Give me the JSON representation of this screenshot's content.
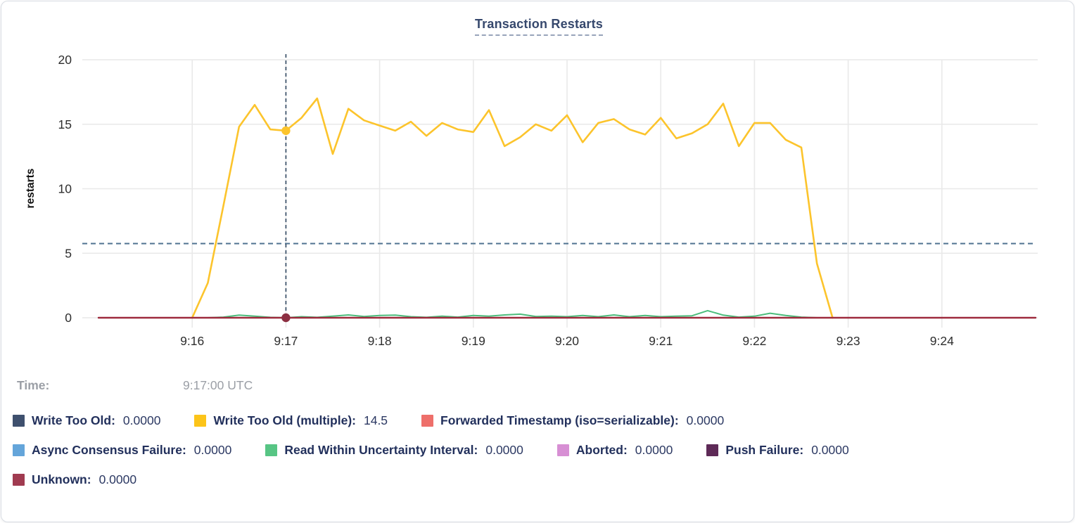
{
  "time_row": {
    "label": "Time:",
    "value": "9:17:00 UTC"
  },
  "legend": {
    "rows": [
      [
        {
          "name": "write-too-old",
          "label": "Write Too Old:",
          "value": "0.0000",
          "color": "#3f506e"
        },
        {
          "name": "write-too-old-multiple",
          "label": "Write Too Old (multiple):",
          "value": "14.5",
          "color": "#fcc419"
        },
        {
          "name": "forwarded-timestamp",
          "label": "Forwarded Timestamp (iso=serializable):",
          "value": "0.0000",
          "color": "#ee6f6a"
        }
      ],
      [
        {
          "name": "async-consensus-failure",
          "label": "Async Consensus Failure:",
          "value": "0.0000",
          "color": "#64a5da"
        },
        {
          "name": "read-within-uncertainty-interval",
          "label": "Read Within Uncertainty Interval:",
          "value": "0.0000",
          "color": "#57c584"
        },
        {
          "name": "aborted",
          "label": "Aborted:",
          "value": "0.0000",
          "color": "#d78fd4"
        },
        {
          "name": "push-failure",
          "label": "Push Failure:",
          "value": "0.0000",
          "color": "#5e2a57"
        }
      ],
      [
        {
          "name": "unknown",
          "label": "Unknown:",
          "value": "0.0000",
          "color": "#a03b50"
        }
      ]
    ]
  },
  "chart_data": {
    "type": "line",
    "title": "Transaction Restarts",
    "ylabel": "restarts",
    "ylim": [
      0,
      20
    ],
    "grid": true,
    "legend_position": "bottom",
    "y_ticks": [
      {
        "label": "0",
        "value": 0
      },
      {
        "label": "5",
        "value": 5
      },
      {
        "label": "10",
        "value": 10
      },
      {
        "label": "15",
        "value": 15
      },
      {
        "label": "20",
        "value": 20
      }
    ],
    "x_unit": "seconds since 9:15:00 UTC",
    "x_range_seconds": [
      0,
      600
    ],
    "x_ticks": [
      {
        "label": "9:16",
        "t": 60
      },
      {
        "label": "9:17",
        "t": 120
      },
      {
        "label": "9:18",
        "t": 180
      },
      {
        "label": "9:19",
        "t": 240
      },
      {
        "label": "9:20",
        "t": 300
      },
      {
        "label": "9:21",
        "t": 360
      },
      {
        "label": "9:22",
        "t": 420
      },
      {
        "label": "9:23",
        "t": 480
      },
      {
        "label": "9:24",
        "t": 540
      }
    ],
    "threshold_line": {
      "value": 5.75,
      "style": "dashed",
      "color": "#4f7290"
    },
    "hover": {
      "t": 120,
      "time": "9:17:00 UTC",
      "crosshair_color": "#3a5068",
      "points": [
        {
          "series": "Write Too Old (multiple)",
          "value": 14.5,
          "color": "#fcc42c"
        },
        {
          "series": "Unknown",
          "value": 0,
          "color": "#8c2f42"
        }
      ]
    },
    "series": [
      {
        "name": "Write Too Old",
        "color": "#3f506e",
        "width": 2,
        "x": [
          0,
          600
        ],
        "y": [
          0,
          0
        ]
      },
      {
        "name": "Forwarded Timestamp (iso=serializable)",
        "color": "#ee6f6a",
        "width": 2,
        "x": [
          0,
          600
        ],
        "y": [
          0,
          0
        ]
      },
      {
        "name": "Async Consensus Failure",
        "color": "#64a5da",
        "width": 2,
        "x": [
          0,
          600
        ],
        "y": [
          0,
          0
        ]
      },
      {
        "name": "Aborted",
        "color": "#d78fd4",
        "width": 2,
        "x": [
          0,
          600
        ],
        "y": [
          0,
          0
        ]
      },
      {
        "name": "Push Failure",
        "color": "#5e2a57",
        "width": 2,
        "x": [
          0,
          600
        ],
        "y": [
          0,
          0
        ]
      },
      {
        "name": "Read Within Uncertainty Interval",
        "color": "#4cbd7c",
        "width": 2,
        "x": [
          60,
          70,
          80,
          90,
          100,
          110,
          120,
          130,
          140,
          150,
          160,
          170,
          180,
          190,
          200,
          210,
          220,
          230,
          240,
          250,
          260,
          270,
          280,
          290,
          300,
          310,
          320,
          330,
          340,
          350,
          360,
          370,
          380,
          390,
          400,
          410,
          420,
          430,
          440,
          450,
          460,
          470
        ],
        "y": [
          0,
          0,
          0.05,
          0.2,
          0.12,
          0.03,
          0,
          0.08,
          0.03,
          0.12,
          0.22,
          0.1,
          0.18,
          0.2,
          0.08,
          0.03,
          0.12,
          0.05,
          0.18,
          0.12,
          0.22,
          0.28,
          0.1,
          0.12,
          0.08,
          0.18,
          0.08,
          0.22,
          0.08,
          0.18,
          0.08,
          0.12,
          0.15,
          0.55,
          0.2,
          0.05,
          0.12,
          0.35,
          0.18,
          0.05,
          0,
          0
        ]
      },
      {
        "name": "Write Too Old (multiple)",
        "color": "#fcc42c",
        "width": 2.6,
        "x": [
          60,
          70,
          80,
          90,
          100,
          110,
          120,
          130,
          140,
          150,
          160,
          170,
          180,
          190,
          200,
          210,
          220,
          230,
          240,
          250,
          260,
          270,
          280,
          290,
          300,
          310,
          320,
          330,
          340,
          350,
          360,
          370,
          380,
          390,
          400,
          410,
          420,
          430,
          440,
          450,
          460,
          470
        ],
        "y": [
          0,
          2.7,
          8.7,
          14.8,
          16.5,
          14.6,
          14.5,
          15.5,
          17.0,
          12.7,
          16.2,
          15.3,
          14.9,
          14.5,
          15.2,
          14.1,
          15.1,
          14.6,
          14.4,
          16.1,
          13.3,
          14.0,
          15.0,
          14.5,
          15.7,
          13.6,
          15.1,
          15.4,
          14.6,
          14.2,
          15.5,
          13.9,
          14.3,
          15.0,
          16.6,
          13.3,
          15.1,
          15.1,
          13.8,
          13.2,
          4.2,
          0
        ]
      },
      {
        "name": "Unknown",
        "color": "#9e2b3d",
        "width": 2.4,
        "x": [
          0,
          600
        ],
        "y": [
          0,
          0
        ]
      }
    ]
  }
}
